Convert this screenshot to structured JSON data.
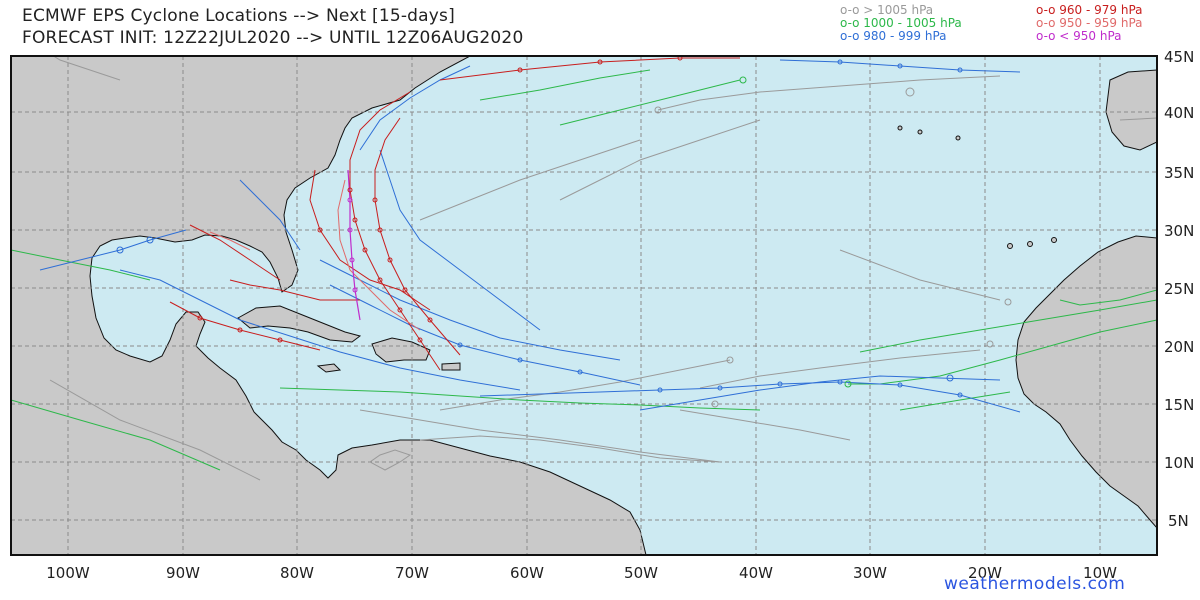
{
  "header": {
    "title_line1": "ECMWF EPS Cyclone Locations --> Next [15-days]",
    "title_line2": "FORECAST INIT: 12Z22JUL2020 --> UNTIL 12Z06AUG2020"
  },
  "legend": {
    "left": [
      {
        "label": "o-o > 1005 hPa",
        "color": "#9a9a9a"
      },
      {
        "label": "o-o 1000 - 1005 hPa",
        "color": "#2db84a"
      },
      {
        "label": "o-o 980 - 999 hPa",
        "color": "#2f6fd6"
      }
    ],
    "right": [
      {
        "label": "o-o 960 - 979 hPa",
        "color": "#c81e1e"
      },
      {
        "label": "o-o 950 - 959 hPa",
        "color": "#e06a6a"
      },
      {
        "label": "o-o < 950 hPa",
        "color": "#c02ccc"
      }
    ]
  },
  "map": {
    "ocean_color": "#cdeaf2",
    "land_color": "#c9c9c9",
    "lon_labels": [
      "100W",
      "90W",
      "80W",
      "70W",
      "60W",
      "50W",
      "40W",
      "30W",
      "20W",
      "10W"
    ],
    "lat_labels": [
      "45N",
      "40N",
      "35N",
      "30N",
      "25N",
      "20N",
      "15N",
      "10N",
      "5N"
    ]
  },
  "credit": "weathermodels.com"
}
